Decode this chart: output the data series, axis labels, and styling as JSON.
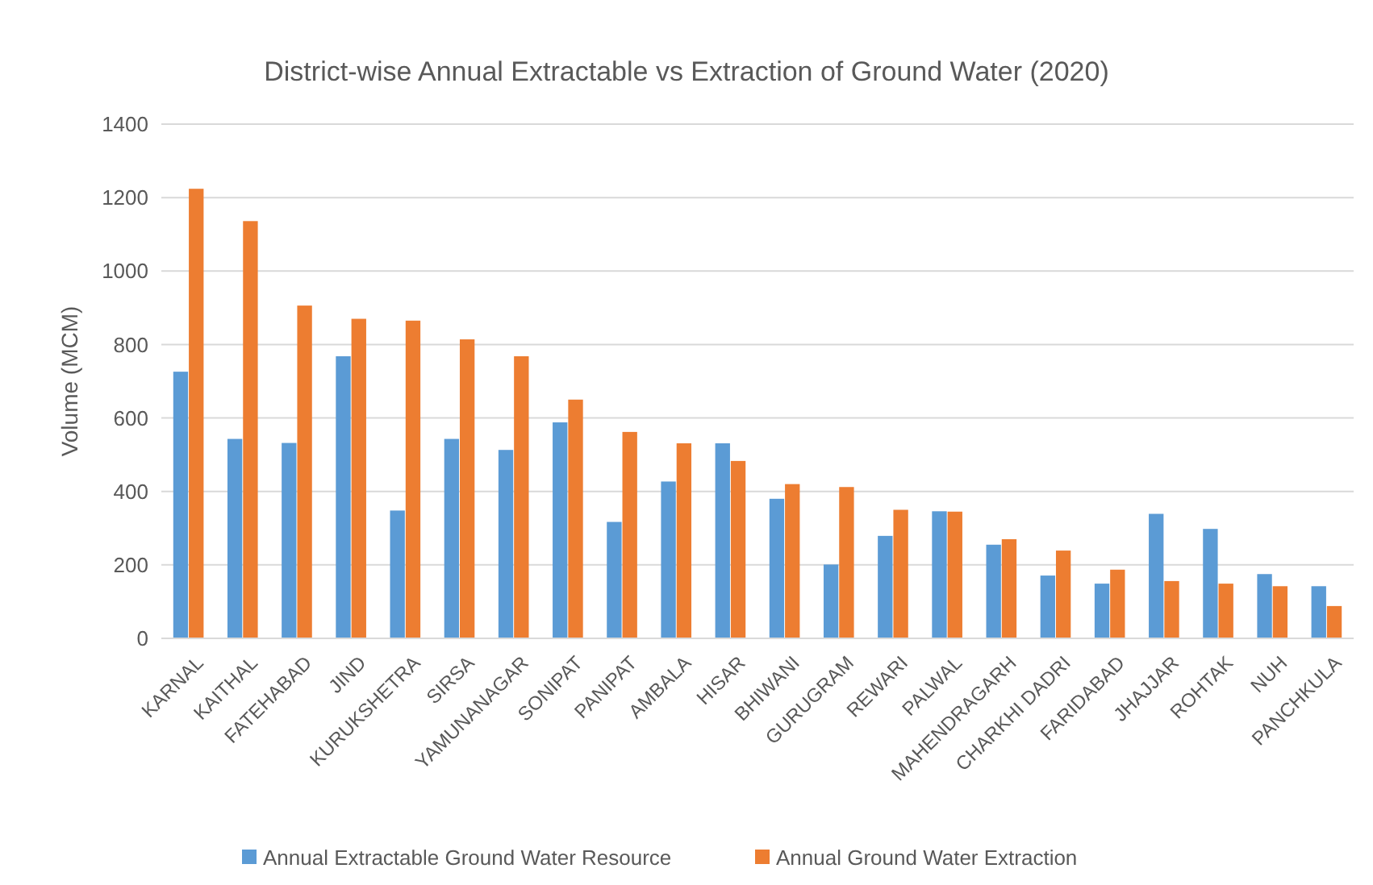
{
  "chart_data": {
    "type": "bar",
    "title": "District-wise Annual Extractable vs Extraction of Ground Water (2020)",
    "ylabel": "Volume (MCM)",
    "categories": [
      "KARNAL",
      "KAITHAL",
      "FATEHABAD",
      "JIND",
      "KURUKSHETRA",
      "SIRSA",
      "YAMUNANAGAR",
      "SONIPAT",
      "PANIPAT",
      "AMBALA",
      "HISAR",
      "BHIWANI",
      "GURUGRAM",
      "REWARI",
      "PALWAL",
      "MAHENDRAGARH",
      "CHARKHI DADRI",
      "FARIDABAD",
      "JHAJJAR",
      "ROHTAK",
      "NUH",
      "PANCHKULA"
    ],
    "series": [
      {
        "name": "Annual Extractable Ground Water Resource",
        "color": "#5b9bd5",
        "values": [
          726,
          543,
          532,
          768,
          348,
          543,
          513,
          588,
          317,
          427,
          531,
          380,
          201,
          279,
          346,
          255,
          171,
          149,
          339,
          298,
          175,
          142
        ]
      },
      {
        "name": "Annual Ground Water Extraction",
        "color": "#ed7d31",
        "values": [
          1224,
          1136,
          906,
          870,
          865,
          814,
          768,
          650,
          562,
          531,
          483,
          420,
          412,
          350,
          345,
          270,
          239,
          187,
          156,
          149,
          142,
          88
        ]
      }
    ],
    "ylim": [
      0,
      1400
    ],
    "yticks": [
      0,
      200,
      400,
      600,
      800,
      1000,
      1200,
      1400
    ],
    "grid": "y",
    "legend": "bottom"
  }
}
